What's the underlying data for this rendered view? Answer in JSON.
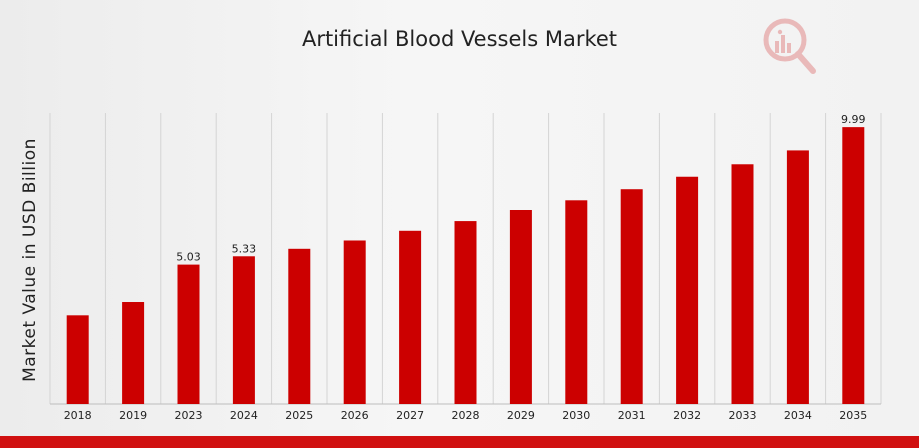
{
  "colors": {
    "bar": "#cc0000",
    "accent": "#d01010",
    "grid": "#d4d4d4"
  },
  "logo_icon": "magnifier-bar-chart-icon",
  "chart_data": {
    "type": "bar",
    "title": "Artificial Blood Vessels Market",
    "xlabel": "",
    "ylabel": "Market Value in USD Billion",
    "categories": [
      "2018",
      "2019",
      "2023",
      "2024",
      "2025",
      "2026",
      "2027",
      "2028",
      "2029",
      "2030",
      "2031",
      "2032",
      "2033",
      "2034",
      "2035"
    ],
    "values": [
      3.2,
      3.68,
      5.03,
      5.33,
      5.6,
      5.9,
      6.25,
      6.6,
      7.0,
      7.35,
      7.75,
      8.2,
      8.65,
      9.15,
      9.99
    ],
    "data_labels": {
      "2023": "5.03",
      "2024": "5.33",
      "2035": "9.99"
    },
    "ylim": [
      0,
      10.5
    ],
    "grid": "vertical",
    "legend": "none"
  }
}
